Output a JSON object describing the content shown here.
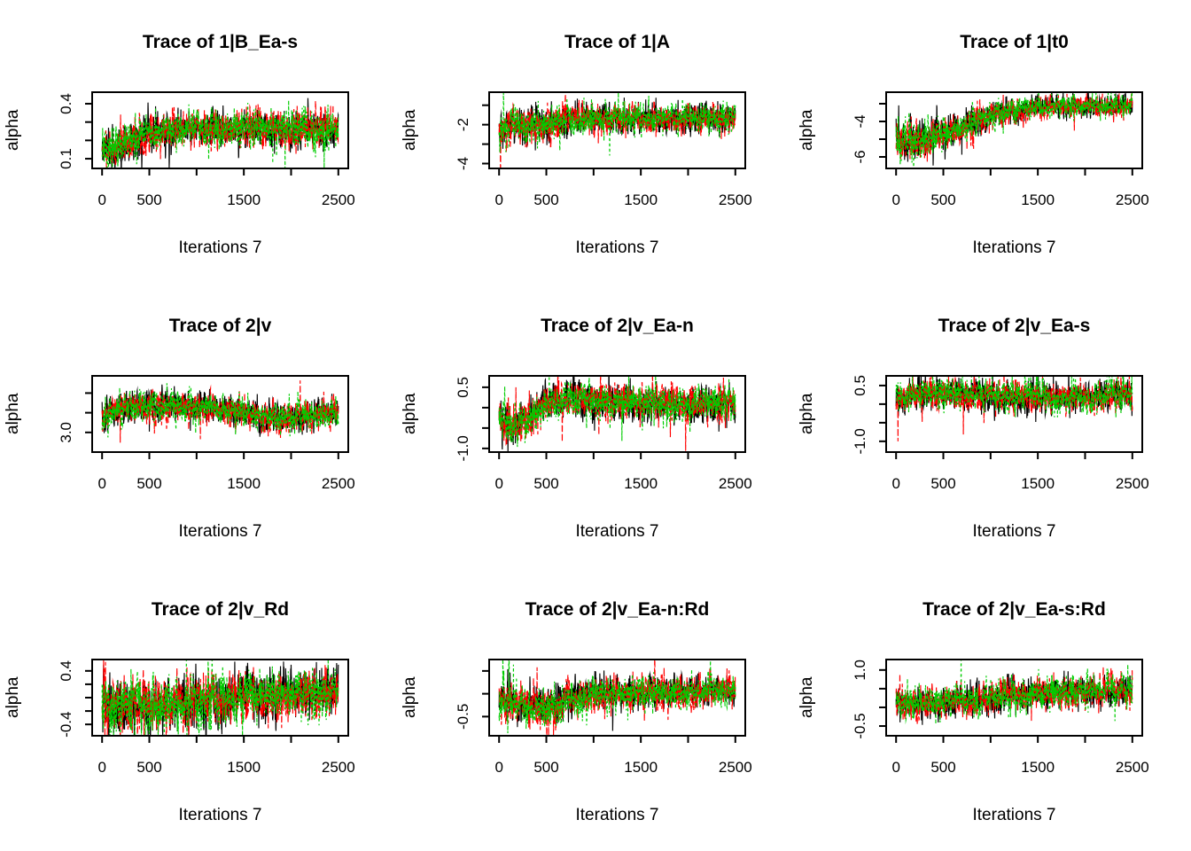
{
  "figure": {
    "background": "#ffffff"
  },
  "chart_style": {
    "chain_colors": [
      "#000000",
      "#FF0000",
      "#00CD00"
    ],
    "axis_color": "#000000"
  },
  "chart_data": [
    {
      "type": "line",
      "title": "Trace of 1|B_Ea-s",
      "xlabel": "Iterations 7",
      "ylabel": "alpha",
      "x_range": [
        0,
        2500
      ],
      "xticks": [
        0,
        500,
        1000,
        1500,
        2000,
        2500
      ],
      "xtick_labels": [
        "0",
        "500",
        "",
        "1500",
        "",
        "2500"
      ],
      "yticks": [
        0.1,
        0.2,
        0.3,
        0.4
      ],
      "ytick_labels": [
        "0.1",
        "",
        "",
        "0.4"
      ],
      "ylim": [
        0.047,
        0.463
      ],
      "n_chains": 3,
      "trend": {
        "x": [
          0,
          100,
          300,
          500,
          900,
          2500
        ],
        "y": [
          0.17,
          0.15,
          0.2,
          0.24,
          0.265,
          0.265
        ]
      },
      "noise": 0.05
    },
    {
      "type": "line",
      "title": "Trace of 1|A",
      "xlabel": "Iterations 7",
      "ylabel": "alpha",
      "x_range": [
        0,
        2500
      ],
      "xticks": [
        0,
        500,
        1000,
        1500,
        2000,
        2500
      ],
      "xtick_labels": [
        "0",
        "500",
        "",
        "1500",
        "",
        "2500"
      ],
      "yticks": [
        -4,
        -3,
        -2,
        -1
      ],
      "ytick_labels": [
        "-4",
        "",
        "-2",
        ""
      ],
      "ylim": [
        -4.25,
        -0.33
      ],
      "n_chains": 3,
      "trend": {
        "x": [
          0,
          150,
          400,
          600,
          900,
          2500
        ],
        "y": [
          -2.4,
          -2.0,
          -2.1,
          -1.85,
          -1.7,
          -1.65
        ]
      },
      "noise": 0.4,
      "noise_profile": {
        "x": [
          0,
          500,
          1000,
          2500
        ],
        "f": [
          1.15,
          1.15,
          0.95,
          0.9
        ]
      },
      "start_spike": {
        "chain": 1,
        "x": 15,
        "y": -4.2
      }
    },
    {
      "type": "line",
      "title": "Trace of 1|t0",
      "xlabel": "Iterations 7",
      "ylabel": "alpha",
      "x_range": [
        0,
        2500
      ],
      "xticks": [
        0,
        500,
        1000,
        1500,
        2000,
        2500
      ],
      "xtick_labels": [
        "0",
        "500",
        "",
        "1500",
        "",
        "2500"
      ],
      "yticks": [
        -6,
        -5,
        -4,
        -3
      ],
      "ytick_labels": [
        "-6",
        "",
        "-4",
        ""
      ],
      "ylim": [
        -6.65,
        -2.35
      ],
      "n_chains": 3,
      "trend": {
        "x": [
          0,
          350,
          600,
          900,
          1200,
          1500,
          2500
        ],
        "y": [
          -5.0,
          -5.0,
          -4.5,
          -3.9,
          -3.4,
          -3.2,
          -3.1
        ]
      },
      "noise": 0.4,
      "noise_profile": {
        "x": [
          0,
          400,
          900,
          1500,
          2500
        ],
        "f": [
          1.3,
          1.25,
          1.0,
          0.75,
          0.75
        ]
      }
    },
    {
      "type": "line",
      "title": "Trace of 2|v",
      "xlabel": "Iterations 7",
      "ylabel": "alpha",
      "x_range": [
        0,
        2500
      ],
      "xticks": [
        0,
        500,
        1000,
        1500,
        2000,
        2500
      ],
      "xtick_labels": [
        "0",
        "500",
        "",
        "1500",
        "",
        "2500"
      ],
      "yticks": [
        3.0,
        3.4,
        3.8
      ],
      "ytick_labels": [
        "3.0",
        "",
        ""
      ],
      "ylim": [
        2.6,
        4.15
      ],
      "n_chains": 3,
      "trend": {
        "x": [
          0,
          200,
          500,
          900,
          1300,
          1800,
          2200,
          2500
        ],
        "y": [
          3.3,
          3.5,
          3.55,
          3.55,
          3.45,
          3.3,
          3.35,
          3.4
        ]
      },
      "noise": 0.15
    },
    {
      "type": "line",
      "title": "Trace of 2|v_Ea-n",
      "xlabel": "Iterations 7",
      "ylabel": "alpha",
      "x_range": [
        0,
        2500
      ],
      "xticks": [
        0,
        500,
        1000,
        1500,
        2000,
        2500
      ],
      "xtick_labels": [
        "0",
        "500",
        "",
        "1500",
        "",
        "2500"
      ],
      "yticks": [
        -1.0,
        -0.5,
        0.0,
        0.5
      ],
      "ytick_labels": [
        "-1.0",
        "",
        "",
        "0.5"
      ],
      "ylim": [
        -1.09,
        0.78
      ],
      "n_chains": 3,
      "trend": {
        "x": [
          0,
          150,
          300,
          500,
          700,
          1000,
          1500,
          2500
        ],
        "y": [
          -0.25,
          -0.45,
          -0.3,
          0.15,
          0.2,
          0.15,
          0.1,
          0.08
        ]
      },
      "noise": 0.21,
      "noise_profile": {
        "x": [
          0,
          300,
          600,
          2500
        ],
        "f": [
          1.2,
          1.15,
          1.0,
          1.0
        ]
      }
    },
    {
      "type": "line",
      "title": "Trace of 2|v_Ea-s",
      "xlabel": "Iterations 7",
      "ylabel": "alpha",
      "x_range": [
        0,
        2500
      ],
      "xticks": [
        0,
        500,
        1000,
        1500,
        2000,
        2500
      ],
      "xtick_labels": [
        "0",
        "500",
        "",
        "1500",
        "",
        "2500"
      ],
      "yticks": [
        -1.0,
        -0.5,
        0.0,
        0.5
      ],
      "ytick_labels": [
        "-1.0",
        "",
        "",
        "0.5"
      ],
      "ylim": [
        -1.29,
        0.76
      ],
      "n_chains": 3,
      "trend": {
        "x": [
          0,
          150,
          400,
          800,
          1300,
          1800,
          2500
        ],
        "y": [
          0.1,
          0.25,
          0.3,
          0.28,
          0.2,
          0.18,
          0.25
        ]
      },
      "noise": 0.2,
      "start_spike": {
        "chain": 1,
        "x": 20,
        "y": -1.0
      }
    },
    {
      "type": "line",
      "title": "Trace of 2|v_Rd",
      "xlabel": "Iterations 7",
      "ylabel": "alpha",
      "x_range": [
        0,
        2500
      ],
      "xticks": [
        0,
        500,
        1000,
        1500,
        2000,
        2500
      ],
      "xtick_labels": [
        "0",
        "500",
        "",
        "1500",
        "",
        "2500"
      ],
      "yticks": [
        -0.4,
        -0.2,
        0.0,
        0.2,
        0.4
      ],
      "ytick_labels": [
        "-0.4",
        "",
        "",
        "",
        "0.4"
      ],
      "ylim": [
        -0.57,
        0.57
      ],
      "n_chains": 3,
      "trend": {
        "x": [
          0,
          400,
          900,
          1400,
          1900,
          2500
        ],
        "y": [
          -0.1,
          -0.12,
          -0.05,
          0.0,
          0.05,
          0.1
        ]
      },
      "noise": 0.19,
      "noise_profile": {
        "x": [
          0,
          400,
          900,
          1500,
          2500
        ],
        "f": [
          1.2,
          1.1,
          1.0,
          0.95,
          0.85
        ]
      }
    },
    {
      "type": "line",
      "title": "Trace of 2|v_Ea-n:Rd",
      "xlabel": "Iterations 7",
      "ylabel": "alpha",
      "x_range": [
        0,
        2500
      ],
      "xticks": [
        0,
        500,
        1000,
        1500,
        2000,
        2500
      ],
      "xtick_labels": [
        "0",
        "500",
        "",
        "1500",
        "",
        "2500"
      ],
      "yticks": [
        -0.5,
        0.0,
        0.5
      ],
      "ytick_labels": [
        "-0.5",
        "",
        ""
      ],
      "ylim": [
        -0.92,
        0.75
      ],
      "n_chains": 3,
      "trend": {
        "x": [
          0,
          250,
          500,
          800,
          1100,
          1600,
          2500
        ],
        "y": [
          -0.15,
          -0.25,
          -0.3,
          -0.1,
          0.0,
          0.03,
          0.05
        ]
      },
      "noise": 0.18,
      "noise_profile": {
        "x": [
          0,
          300,
          550,
          900,
          2500
        ],
        "f": [
          1.1,
          1.15,
          1.2,
          1.0,
          0.95
        ]
      }
    },
    {
      "type": "line",
      "title": "Trace of 2|v_Ea-s:Rd",
      "xlabel": "Iterations 7",
      "ylabel": "alpha",
      "x_range": [
        0,
        2500
      ],
      "xticks": [
        0,
        500,
        1000,
        1500,
        2000,
        2500
      ],
      "xtick_labels": [
        "0",
        "500",
        "",
        "1500",
        "",
        "2500"
      ],
      "yticks": [
        -0.5,
        0.0,
        0.5,
        1.0
      ],
      "ytick_labels": [
        "-0.5",
        "",
        "",
        "1.0"
      ],
      "ylim": [
        -0.76,
        1.28
      ],
      "n_chains": 3,
      "trend": {
        "x": [
          0,
          400,
          800,
          1200,
          1700,
          2200,
          2500
        ],
        "y": [
          0.1,
          0.1,
          0.2,
          0.33,
          0.4,
          0.45,
          0.5
        ]
      },
      "noise": 0.21,
      "start_spike": {
        "chain": 1,
        "x": 40,
        "y": 0.9
      }
    }
  ]
}
